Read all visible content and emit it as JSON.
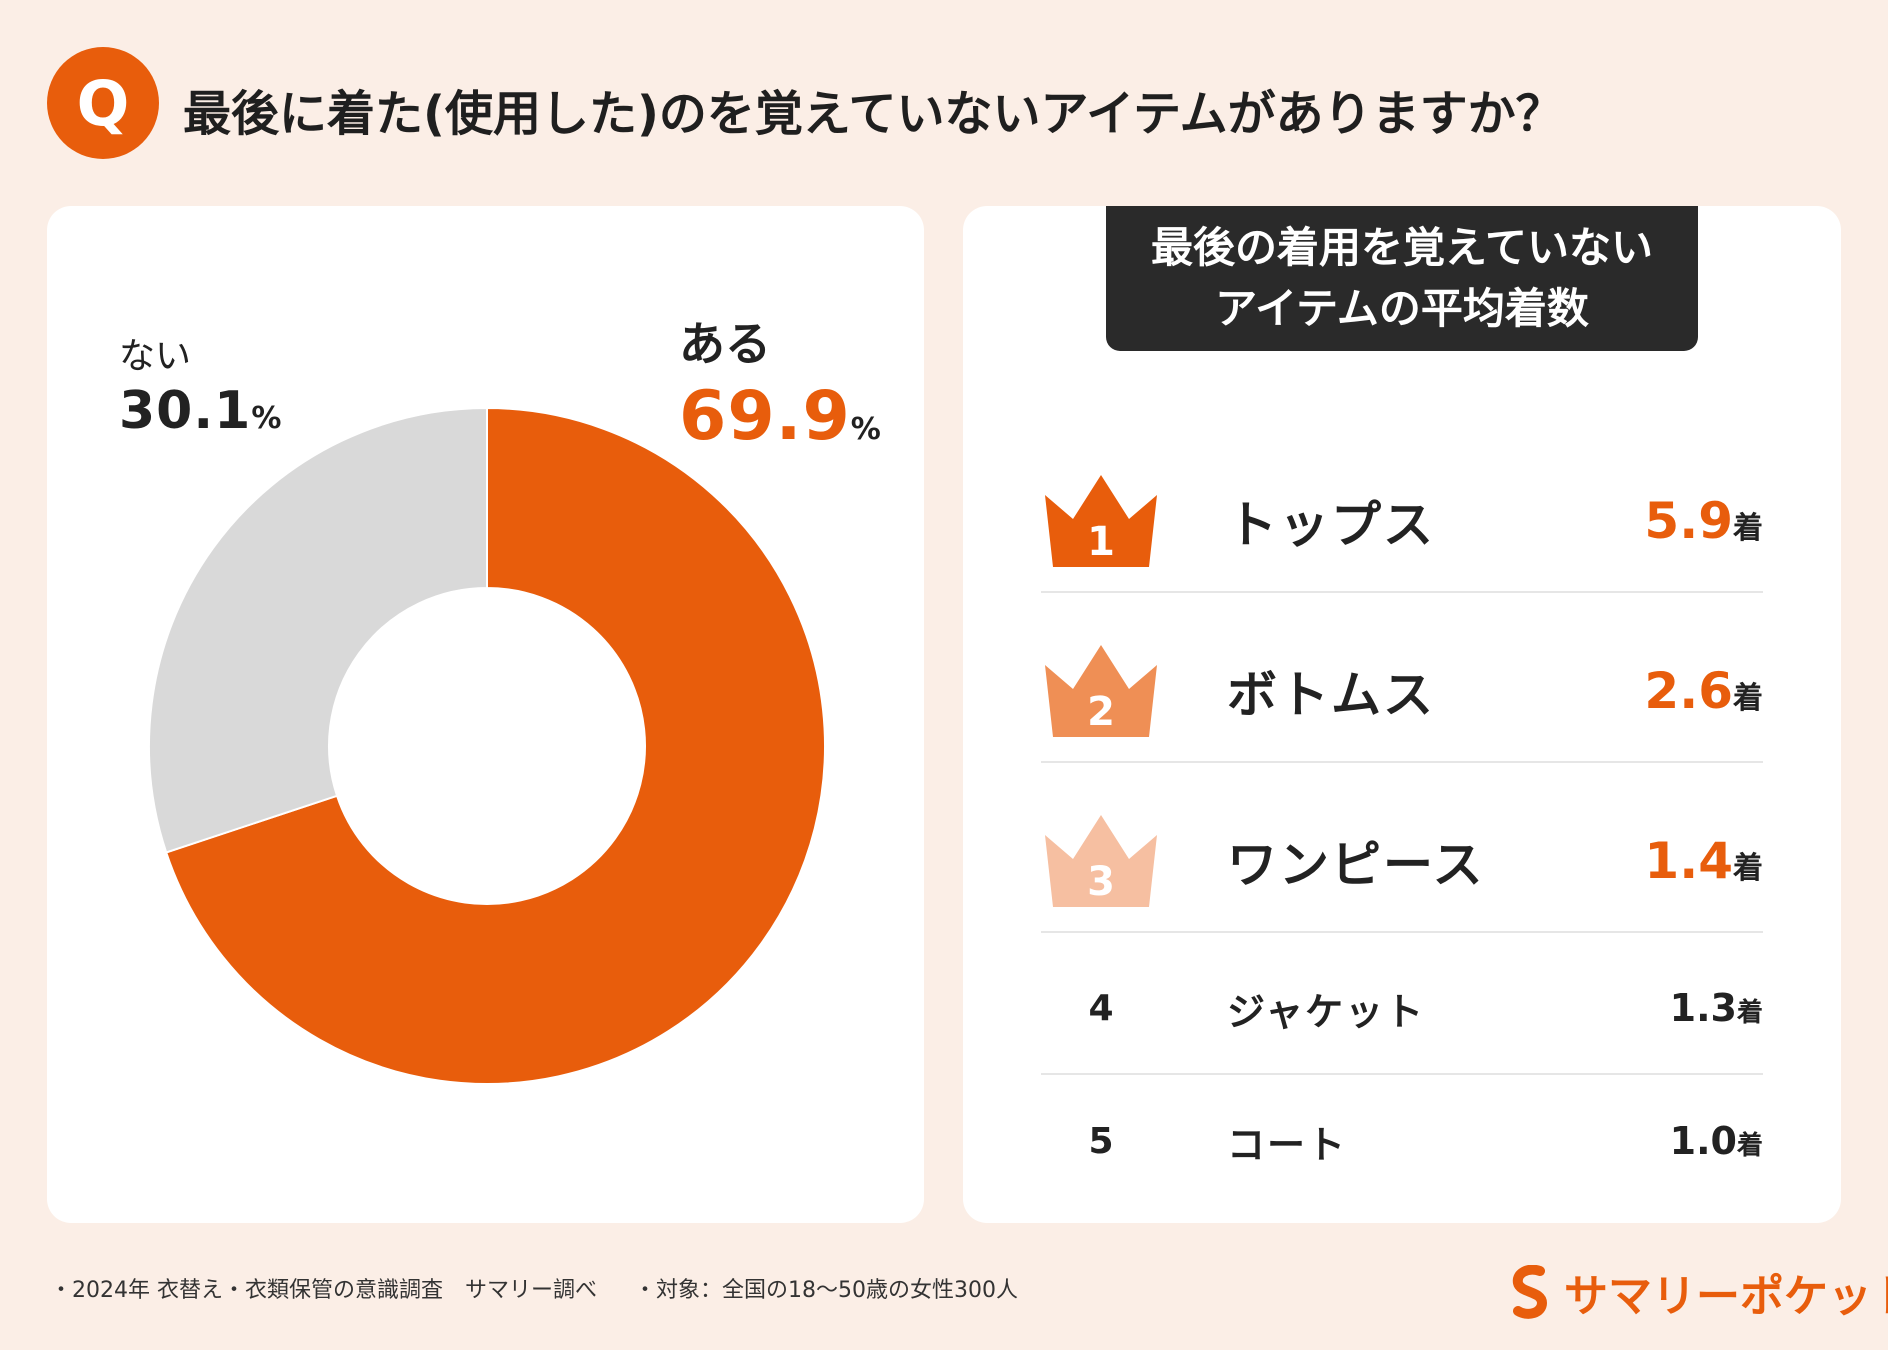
{
  "header": {
    "badge": "Q",
    "question": "最後に着た(使用した)のを覚えていないアイテムがありますか？"
  },
  "colors": {
    "accent": "#e85d0c",
    "grey": "#d9d9d9",
    "rank2": "#ef8f55",
    "rank3": "#f6bfa1",
    "dark": "#2a2a2a"
  },
  "chart_data": [
    {
      "type": "pie",
      "variant": "donut",
      "categories": [
        "ある",
        "ない"
      ],
      "values": [
        69.9,
        30.1
      ],
      "unit": "%",
      "colors": [
        "#e85d0c",
        "#d9d9d9"
      ]
    },
    {
      "type": "table",
      "title": "最後の着用を覚えていないアイテムの平均着数",
      "columns": [
        "rank",
        "item",
        "value",
        "unit"
      ],
      "rows": [
        {
          "rank": "1",
          "item": "トップス",
          "value": "5.9",
          "unit": "着"
        },
        {
          "rank": "2",
          "item": "ボトムス",
          "value": "2.6",
          "unit": "着"
        },
        {
          "rank": "3",
          "item": "ワンピース",
          "value": "1.4",
          "unit": "着"
        },
        {
          "rank": "4",
          "item": "ジャケット",
          "value": "1.3",
          "unit": "着"
        },
        {
          "rank": "5",
          "item": "コート",
          "value": "1.0",
          "unit": "着"
        }
      ]
    }
  ],
  "donut_labels": {
    "aru_label": "ある",
    "aru_value": "69.9",
    "nai_label": "ない",
    "nai_value": "30.1",
    "pct": "%"
  },
  "ranking": {
    "title_line1": "最後の着用を覚えていない",
    "title_line2": "アイテムの平均着数"
  },
  "footer": {
    "source": "・2024年 衣替え・衣類保管の意識調査　サマリー調べ",
    "target": "・対象：全国の18～50歳の女性300人",
    "brand": "サマリーポケット"
  }
}
